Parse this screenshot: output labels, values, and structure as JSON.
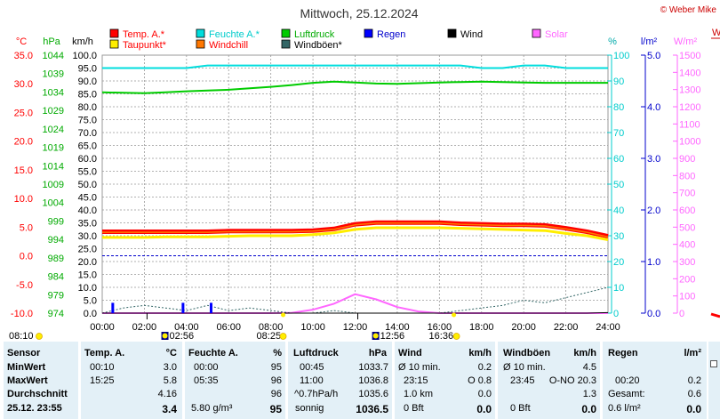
{
  "title": "Mittwoch, 25.12.2024",
  "copyright": "© Weber Mike",
  "legend": [
    {
      "label": "Temp. A.*",
      "color": "#ff0000"
    },
    {
      "label": "Feuchte A.*",
      "color": "#00dddd"
    },
    {
      "label": "Luftdruck",
      "color": "#00cc00"
    },
    {
      "label": "Regen",
      "color": "#0000ff"
    },
    {
      "label": "Wind",
      "color": "#000000"
    },
    {
      "label": "Solar",
      "color": "#ff66ff"
    },
    {
      "label": "Taupunkt*",
      "color": "#ffee00"
    },
    {
      "label": "Windchill",
      "color": "#ff7700"
    },
    {
      "label": "Windböen*",
      "color": "#336666"
    }
  ],
  "axis_units": {
    "temp": "°C",
    "press": "hPa",
    "wind": "km/h",
    "hum": "%",
    "rain": "l/m²",
    "solar": "W/m²"
  },
  "chart_data": {
    "type": "line",
    "x": [
      "00:00",
      "01:00",
      "02:00",
      "03:00",
      "04:00",
      "05:00",
      "06:00",
      "07:00",
      "08:00",
      "09:00",
      "10:00",
      "11:00",
      "12:00",
      "13:00",
      "14:00",
      "15:00",
      "16:00",
      "17:00",
      "18:00",
      "19:00",
      "20:00",
      "21:00",
      "22:00",
      "23:00",
      "24:00"
    ],
    "xticks": [
      "00:00",
      "02:00",
      "04:00",
      "06:00",
      "08:00",
      "10:00",
      "12:00",
      "14:00",
      "16:00",
      "18:00",
      "20:00",
      "22:00",
      "24:00"
    ],
    "xlim": [
      "00:00",
      "24:00"
    ],
    "axes": {
      "temp": {
        "label": "°C",
        "range": [
          -10,
          35
        ],
        "ticks": [
          "35.0",
          "30.0",
          "25.0",
          "20.0",
          "15.0",
          "10.0",
          "5.0",
          "0.0",
          "-5.0",
          "-10.0"
        ]
      },
      "press": {
        "label": "hPa",
        "range": [
          974,
          1044
        ],
        "ticks": [
          "1044",
          "1039",
          "1034",
          "1029",
          "1024",
          "1019",
          "1014",
          "1009",
          "1004",
          "999",
          "994",
          "989",
          "984",
          "979",
          "974"
        ]
      },
      "wind": {
        "label": "km/h",
        "range": [
          0,
          100
        ],
        "ticks": [
          "100.0",
          "95.0",
          "90.0",
          "85.0",
          "80.0",
          "75.0",
          "70.0",
          "65.0",
          "60.0",
          "55.0",
          "50.0",
          "45.0",
          "40.0",
          "35.0",
          "30.0",
          "25.0",
          "20.0",
          "15.0",
          "10.0",
          "5.0",
          "0.0"
        ]
      },
      "hum": {
        "label": "%",
        "range": [
          0,
          100
        ],
        "ticks": [
          "100",
          "90",
          "80",
          "70",
          "60",
          "50",
          "40",
          "30",
          "20",
          "10",
          "0"
        ]
      },
      "rain": {
        "label": "l/m²",
        "range": [
          0,
          5
        ],
        "ticks": [
          "5.0",
          "4.0",
          "3.0",
          "2.0",
          "1.0",
          "0.0"
        ]
      },
      "solar": {
        "label": "W/m²",
        "range": [
          0,
          1500
        ],
        "ticks": [
          "1500",
          "1400",
          "1300",
          "1200",
          "1100",
          "1000",
          "900",
          "800",
          "700",
          "600",
          "500",
          "400",
          "300",
          "200",
          "100",
          "0"
        ]
      }
    },
    "series": [
      {
        "name": "Feuchte A.*",
        "axis": "hum",
        "values": [
          95,
          95,
          95,
          95,
          95,
          96,
          96,
          96,
          96,
          96,
          96,
          96,
          96,
          96,
          96,
          96,
          96,
          96,
          95,
          95,
          96,
          96,
          95,
          95,
          95
        ]
      },
      {
        "name": "Luftdruck",
        "axis": "press",
        "values": [
          1033.9,
          1033.8,
          1033.7,
          1033.9,
          1034.2,
          1034.4,
          1034.6,
          1035.0,
          1035.4,
          1035.9,
          1036.5,
          1036.8,
          1036.6,
          1036.3,
          1036.2,
          1036.4,
          1036.6,
          1036.7,
          1036.8,
          1036.7,
          1036.6,
          1036.5,
          1036.5,
          1036.5,
          1036.5
        ]
      },
      {
        "name": "Temp. A.*",
        "axis": "temp",
        "values": [
          4.2,
          4.2,
          4.2,
          4.2,
          4.2,
          4.2,
          4.3,
          4.3,
          4.3,
          4.3,
          4.4,
          4.7,
          5.5,
          5.8,
          5.8,
          5.8,
          5.8,
          5.6,
          5.5,
          5.4,
          5.4,
          5.3,
          4.8,
          4.2,
          3.4
        ]
      },
      {
        "name": "Taupunkt*",
        "axis": "temp",
        "values": [
          3.2,
          3.2,
          3.2,
          3.3,
          3.3,
          3.3,
          3.4,
          3.5,
          3.5,
          3.5,
          3.7,
          4.0,
          4.6,
          4.9,
          4.9,
          4.9,
          4.9,
          4.8,
          4.7,
          4.6,
          4.5,
          4.4,
          3.9,
          3.5,
          2.8
        ]
      },
      {
        "name": "Windchill",
        "axis": "temp",
        "values": [
          4.1,
          4.1,
          4.1,
          4.1,
          4.1,
          4.1,
          4.2,
          4.2,
          4.2,
          4.2,
          4.3,
          4.6,
          5.4,
          5.7,
          5.7,
          5.7,
          5.7,
          5.5,
          5.4,
          5.3,
          5.3,
          5.2,
          4.7,
          4.1,
          3.3
        ]
      },
      {
        "name": "Solar",
        "axis": "solar",
        "values": [
          0,
          0,
          0,
          0,
          0,
          0,
          0,
          0,
          0,
          2,
          20,
          55,
          110,
          80,
          35,
          10,
          0,
          0,
          0,
          0,
          0,
          0,
          0,
          0,
          0
        ]
      },
      {
        "name": "Windböen*",
        "axis": "wind",
        "values": [
          0,
          2,
          3,
          2,
          1,
          3,
          1,
          2,
          1,
          0,
          0,
          1,
          0,
          0,
          0,
          0,
          0,
          1,
          2,
          3,
          5,
          4,
          6,
          8,
          10
        ]
      },
      {
        "name": "Wind",
        "axis": "wind",
        "values": [
          0,
          0,
          0,
          0,
          0,
          0,
          0,
          0,
          0,
          0,
          0,
          0,
          0,
          0,
          0,
          0,
          0,
          0,
          0,
          0,
          0,
          0,
          0,
          0,
          0.2
        ]
      }
    ],
    "rain_bars": {
      "axis": "wind",
      "x": [
        "00:30",
        "03:50",
        "05:10"
      ],
      "values": [
        4,
        4,
        4
      ]
    },
    "reference_line": {
      "axis": "temp",
      "value": 0.0
    },
    "grid": true
  },
  "sun": {
    "rise": "08:10",
    "set": "16:36",
    "moonset": "02:56",
    "moonrise": "12:56",
    "civil_dawn": "08:25"
  },
  "summary": {
    "sensor": {
      "h": "Sensor",
      "r1": "MinWert",
      "r2": "MaxWert",
      "r3": "Durchschnitt",
      "r4": "25.12. 23:55"
    },
    "temp": {
      "h1": "Temp. A.",
      "h2": "°C",
      "r1a": "00:10",
      "r1b": "3.0",
      "r2a": "15:25",
      "r2b": "5.8",
      "r3b": "4.16",
      "r4b": "3.4"
    },
    "hum": {
      "h1": "Feuchte A.",
      "h2": "%",
      "r1a": "00:00",
      "r1b": "95",
      "r2a": "05:35",
      "r2b": "96",
      "r3b": "96",
      "r4a": "5.80 g/m³",
      "r4b": "95"
    },
    "press": {
      "h1": "Luftdruck",
      "h2": "hPa",
      "r1a": "00:45",
      "r1b": "1033.7",
      "r2a": "11:00",
      "r2b": "1036.8",
      "r3a": "^0.7hPa/h",
      "r3b": "1035.6",
      "r4a": "sonnig",
      "r4b": "1036.5"
    },
    "wind": {
      "h1": "Wind",
      "h2": "km/h",
      "r1a": "Ø 10 min.",
      "r1b": "0.2",
      "r2a": "23:15",
      "r2b": "O 0.8",
      "r3a": "1.0 km",
      "r3b": "0.0",
      "r4a": "0 Bft",
      "r4b": "0.0"
    },
    "gust": {
      "h1": "Windböen",
      "h2": "km/h",
      "r1a": "Ø 10 min.",
      "r1b": "4.5",
      "r2a": "23:45",
      "r2b": "O-NO 20.3",
      "r3b": "1.3",
      "r4a": "0 Bft",
      "r4b": "0.0"
    },
    "rain": {
      "h1": "Regen",
      "h2": "l/m²",
      "r2a": "00:20",
      "r2b": "0.2",
      "r3a": "Gesamt:",
      "r3b": "0.6",
      "r4a": "0.6 l/m²",
      "r4b": "0.0"
    }
  },
  "partial_label": "W"
}
